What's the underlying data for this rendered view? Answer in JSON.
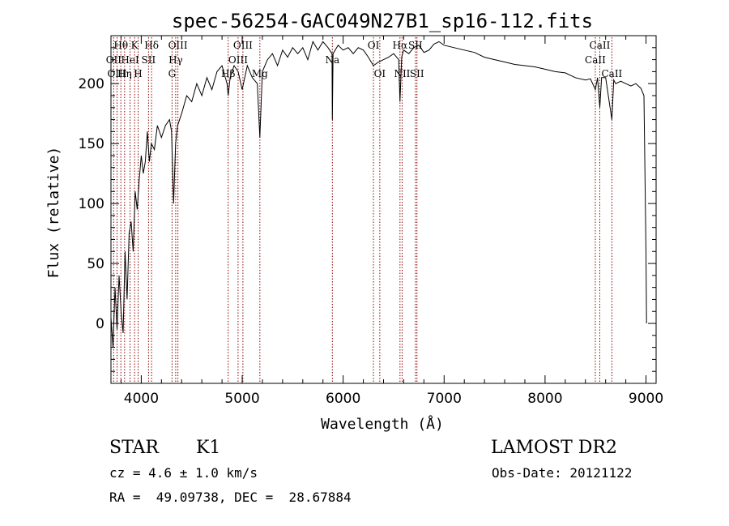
{
  "chart_data": {
    "type": "line",
    "title": "spec-56254-GAC049N27B1_sp16-112.fits",
    "xlabel": "Wavelength (Å)",
    "ylabel": "Flux (relative)",
    "xlim": [
      3700,
      9100
    ],
    "ylim": [
      -50,
      240
    ],
    "xticks": [
      4000,
      5000,
      6000,
      7000,
      8000,
      9000
    ],
    "yticks": [
      0,
      50,
      100,
      150,
      200
    ],
    "series": [
      {
        "x": [
          3700,
          3720,
          3740,
          3760,
          3780,
          3800,
          3820,
          3840,
          3860,
          3880,
          3900,
          3920,
          3940,
          3960,
          3980,
          4000,
          4020,
          4040,
          4060,
          4080,
          4100,
          4130,
          4160,
          4200,
          4240,
          4280,
          4300,
          4320,
          4340,
          4360,
          4400,
          4450,
          4500,
          4550,
          4600,
          4650,
          4700,
          4750,
          4800,
          4850,
          4861,
          4880,
          4920,
          4960,
          5000,
          5050,
          5100,
          5150,
          5175,
          5200,
          5250,
          5300,
          5350,
          5400,
          5450,
          5500,
          5550,
          5600,
          5650,
          5700,
          5750,
          5800,
          5850,
          5890,
          5893,
          5900,
          5950,
          6000,
          6050,
          6100,
          6150,
          6200,
          6250,
          6300,
          6350,
          6400,
          6450,
          6500,
          6550,
          6563,
          6580,
          6600,
          6650,
          6700,
          6750,
          6800,
          6850,
          6900,
          6950,
          7000,
          7100,
          7200,
          7300,
          7400,
          7500,
          7600,
          7700,
          7800,
          7900,
          8000,
          8100,
          8200,
          8300,
          8400,
          8450,
          8498,
          8520,
          8542,
          8560,
          8600,
          8662,
          8680,
          8700,
          8750,
          8800,
          8850,
          8900,
          8950,
          8980,
          9000,
          9005
        ],
        "values": [
          5,
          -20,
          30,
          -5,
          40,
          10,
          -8,
          60,
          20,
          75,
          85,
          60,
          110,
          95,
          120,
          140,
          125,
          135,
          160,
          135,
          150,
          145,
          165,
          155,
          165,
          170,
          160,
          100,
          150,
          165,
          175,
          190,
          185,
          200,
          190,
          205,
          195,
          210,
          215,
          200,
          190,
          205,
          215,
          210,
          195,
          215,
          205,
          200,
          155,
          210,
          220,
          225,
          215,
          228,
          222,
          230,
          225,
          230,
          220,
          235,
          228,
          235,
          230,
          225,
          170,
          225,
          232,
          228,
          230,
          225,
          230,
          228,
          222,
          215,
          218,
          220,
          222,
          225,
          220,
          185,
          222,
          228,
          225,
          230,
          232,
          226,
          228,
          233,
          235,
          232,
          230,
          228,
          226,
          222,
          220,
          218,
          216,
          215,
          214,
          212,
          210,
          209,
          205,
          203,
          204,
          195,
          205,
          180,
          205,
          205,
          170,
          203,
          200,
          202,
          200,
          198,
          200,
          196,
          190,
          60,
          0
        ]
      }
    ],
    "lines": [
      {
        "name": "Hθ",
        "x": 3798,
        "row": 0
      },
      {
        "name": "OII",
        "x": 3727,
        "row": 1
      },
      {
        "name": "OIII",
        "x": 3760,
        "row": 2
      },
      {
        "name": "K",
        "x": 3934,
        "row": 0
      },
      {
        "name": "HeI",
        "x": 3889,
        "row": 1
      },
      {
        "name": "Hη",
        "x": 3835,
        "row": 2
      },
      {
        "name": "Hδ",
        "x": 4102,
        "row": 0
      },
      {
        "name": "SII",
        "x": 4072,
        "row": 1
      },
      {
        "name": "H",
        "x": 3969,
        "row": 2
      },
      {
        "name": "OIII",
        "x": 4363,
        "row": 0
      },
      {
        "name": "Hγ",
        "x": 4341,
        "row": 1
      },
      {
        "name": "G",
        "x": 4305,
        "row": 2
      },
      {
        "name": "OIII",
        "x": 5007,
        "row": 0
      },
      {
        "name": "OIII",
        "x": 4959,
        "row": 1
      },
      {
        "name": "Hβ",
        "x": 4861,
        "row": 2
      },
      {
        "name": "Mg",
        "x": 5175,
        "row": 2
      },
      {
        "name": "Na",
        "x": 5893,
        "row": 1
      },
      {
        "name": "OI",
        "x": 6300,
        "row": 0
      },
      {
        "name": "OI",
        "x": 6363,
        "row": 2
      },
      {
        "name": "Hα",
        "x": 6563,
        "row": 0
      },
      {
        "name": "SII",
        "x": 6716,
        "row": 0
      },
      {
        "name": "NII",
        "x": 6584,
        "row": 2
      },
      {
        "name": "SII",
        "x": 6731,
        "row": 2
      },
      {
        "name": "CaII",
        "x": 8542,
        "row": 0
      },
      {
        "name": "CaII",
        "x": 8498,
        "row": 1
      },
      {
        "name": "CaII",
        "x": 8662,
        "row": 2
      }
    ]
  },
  "info": {
    "class_label": "STAR",
    "subclass": "K1",
    "survey": "LAMOST DR2",
    "cz": "cz = 4.6 ± 1.0 km/s",
    "obs_date": "Obs-Date: 20121122",
    "coords": "RA =  49.09738, DEC =  28.67884"
  }
}
